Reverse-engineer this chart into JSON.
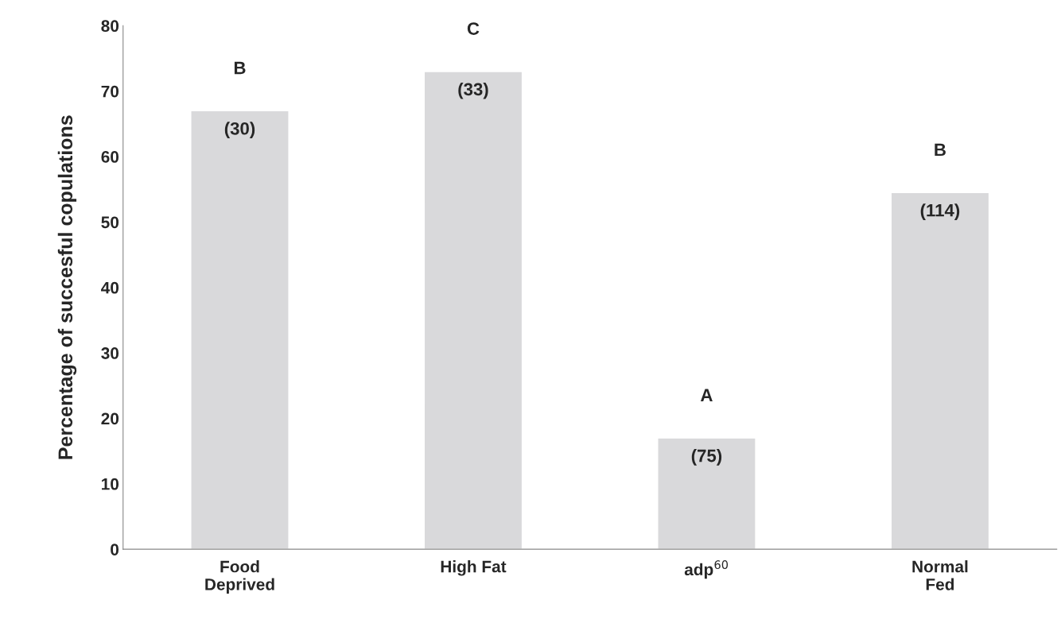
{
  "chart_data": {
    "type": "bar",
    "ylabel": "Percentage of succesful copulations",
    "categories": [
      "Food\nDeprived",
      "High Fat",
      "adp$^{60}$",
      "Normal\nFed"
    ],
    "values": [
      67,
      73,
      17,
      54.5
    ],
    "color": "#d9d9db",
    "ylim": [
      0,
      80
    ],
    "yticks": [
      0,
      10,
      20,
      30,
      40,
      50,
      60,
      70,
      80
    ],
    "grid": false,
    "annotations": [
      "B",
      "C",
      "A",
      "B",
      "(30)",
      "(33)",
      "(75)",
      "(114)"
    ]
  }
}
